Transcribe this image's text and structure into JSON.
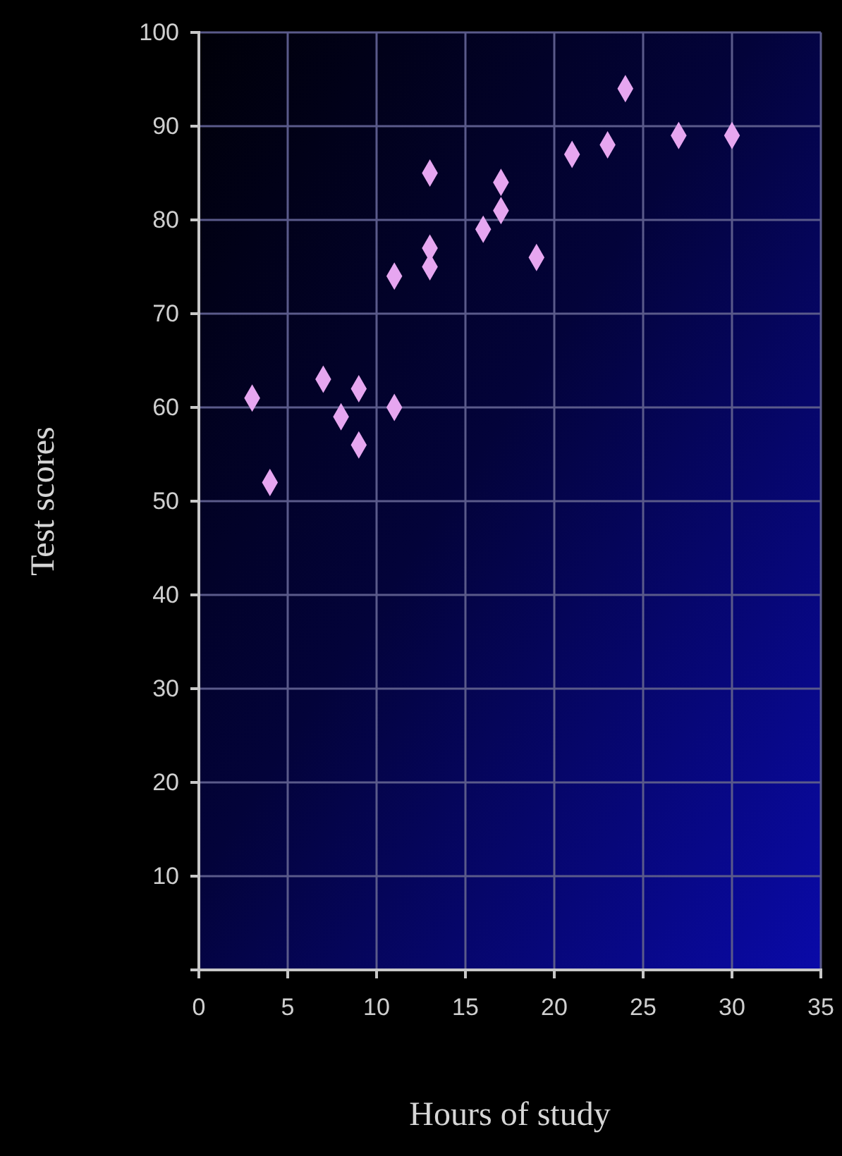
{
  "chart_data": {
    "type": "scatter",
    "xlabel": "Hours of study",
    "ylabel": "Test scores",
    "x": [
      3,
      4,
      7,
      9,
      8,
      9,
      11,
      11,
      13,
      13,
      13,
      17,
      17,
      16,
      19,
      21,
      23,
      24,
      27,
      30
    ],
    "values": [
      61,
      52,
      63,
      62,
      59,
      56,
      60,
      74,
      77,
      75,
      85,
      84,
      81,
      79,
      76,
      87,
      88,
      94,
      89,
      89
    ],
    "color": "#e6a6f0",
    "marker": "diamond",
    "grid": true,
    "xlim": [
      0,
      35
    ],
    "xticks": [
      0,
      5,
      10,
      15,
      20,
      25,
      30,
      35
    ],
    "ylim": [
      0,
      100
    ],
    "yticks": [
      {
        "value": 0,
        "label": null
      },
      10,
      20,
      30,
      40,
      50,
      60,
      70,
      80,
      90,
      100
    ]
  }
}
